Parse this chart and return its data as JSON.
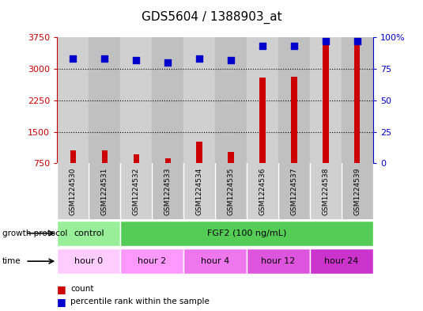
{
  "title": "GDS5604 / 1388903_at",
  "samples": [
    "GSM1224530",
    "GSM1224531",
    "GSM1224532",
    "GSM1224533",
    "GSM1224534",
    "GSM1224535",
    "GSM1224536",
    "GSM1224537",
    "GSM1224538",
    "GSM1224539"
  ],
  "counts": [
    1050,
    1050,
    970,
    870,
    1270,
    1020,
    2800,
    2820,
    3720,
    3720
  ],
  "percentiles": [
    83,
    83,
    82,
    80,
    83,
    82,
    93,
    93,
    97,
    97
  ],
  "ylim_left": [
    750,
    3750
  ],
  "ylim_right": [
    0,
    100
  ],
  "yticks_left": [
    750,
    1500,
    2250,
    3000,
    3750
  ],
  "yticks_right": [
    0,
    25,
    50,
    75,
    100
  ],
  "left_color": "#cc0000",
  "right_color": "#0000cc",
  "bar_color": "#cc0000",
  "dot_color": "#0000cc",
  "growth_protocol_label": "growth protocol",
  "time_label": "time",
  "protocol_groups": [
    {
      "label": "control",
      "color": "#99ee99",
      "start": 0,
      "end": 2
    },
    {
      "label": "FGF2 (100 ng/mL)",
      "color": "#55cc55",
      "start": 2,
      "end": 10
    }
  ],
  "time_groups": [
    {
      "label": "hour 0",
      "color": "#ffccff",
      "start": 0,
      "end": 2
    },
    {
      "label": "hour 2",
      "color": "#ff99ff",
      "start": 2,
      "end": 4
    },
    {
      "label": "hour 4",
      "color": "#ee77ee",
      "start": 4,
      "end": 6
    },
    {
      "label": "hour 12",
      "color": "#dd55dd",
      "start": 6,
      "end": 8
    },
    {
      "label": "hour 24",
      "color": "#cc33cc",
      "start": 8,
      "end": 10
    }
  ],
  "legend_count_label": "count",
  "legend_pct_label": "percentile rank within the sample",
  "col_colors": [
    "#d0d0d0",
    "#c0c0c0"
  ]
}
